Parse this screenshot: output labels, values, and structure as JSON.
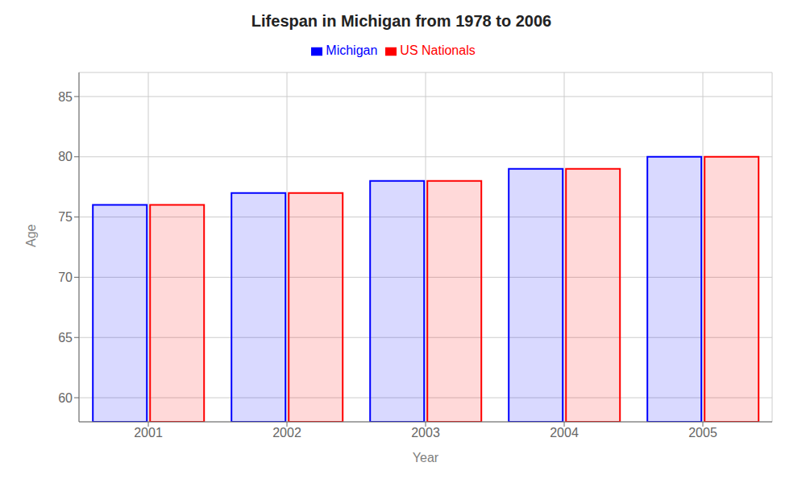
{
  "chart_data": {
    "type": "bar",
    "title": "Lifespan in Michigan from 1978 to 2006",
    "xlabel": "Year",
    "ylabel": "Age",
    "categories": [
      "2001",
      "2002",
      "2003",
      "2004",
      "2005"
    ],
    "series": [
      {
        "name": "Michigan",
        "color": "#0000ff",
        "values": [
          76,
          77,
          78,
          79,
          80
        ]
      },
      {
        "name": "US Nationals",
        "color": "#ff0000",
        "values": [
          76,
          77,
          78,
          79,
          80
        ]
      }
    ],
    "ylim": [
      58,
      87
    ],
    "yticks": [
      60,
      65,
      70,
      75,
      80,
      85
    ],
    "grid": true,
    "legend": "top"
  }
}
